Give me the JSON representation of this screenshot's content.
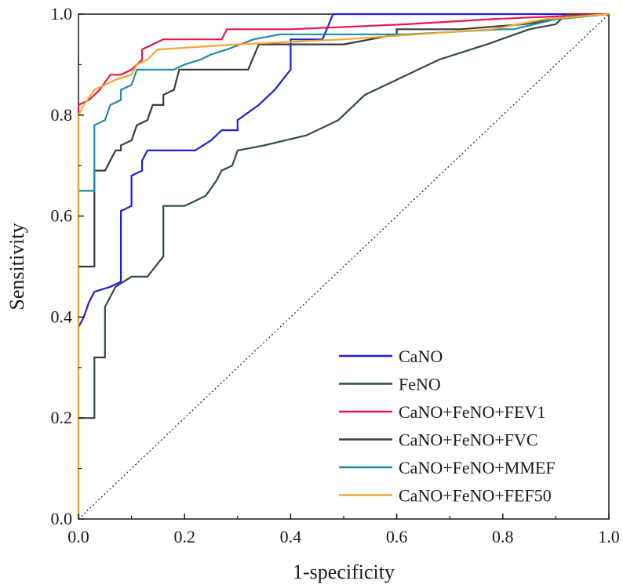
{
  "chart_data": {
    "type": "line",
    "title": "",
    "xlabel": "1-specificity",
    "ylabel": "Sensitivity",
    "xlim": [
      0.0,
      1.0
    ],
    "ylim": [
      0.0,
      1.0
    ],
    "x_ticks": [
      "0.0",
      "0.2",
      "0.4",
      "0.6",
      "0.8",
      "1.0"
    ],
    "y_ticks": [
      "0.0",
      "0.2",
      "0.4",
      "0.6",
      "0.8",
      "1.0"
    ],
    "grid": false,
    "legend_position": "bottom-right",
    "reference_line": {
      "style": "dotted",
      "points": [
        [
          0,
          0
        ],
        [
          1,
          1
        ]
      ]
    },
    "series": [
      {
        "name": "CaNO",
        "color": "#1f1fd8",
        "points": [
          [
            0,
            0.38
          ],
          [
            0.01,
            0.4
          ],
          [
            0.02,
            0.43
          ],
          [
            0.03,
            0.45
          ],
          [
            0.06,
            0.46
          ],
          [
            0.08,
            0.47
          ],
          [
            0.08,
            0.61
          ],
          [
            0.1,
            0.62
          ],
          [
            0.1,
            0.68
          ],
          [
            0.12,
            0.69
          ],
          [
            0.12,
            0.71
          ],
          [
            0.13,
            0.73
          ],
          [
            0.15,
            0.73
          ],
          [
            0.22,
            0.73
          ],
          [
            0.25,
            0.75
          ],
          [
            0.27,
            0.77
          ],
          [
            0.3,
            0.77
          ],
          [
            0.3,
            0.79
          ],
          [
            0.34,
            0.82
          ],
          [
            0.37,
            0.85
          ],
          [
            0.4,
            0.89
          ],
          [
            0.4,
            0.95
          ],
          [
            0.46,
            0.95
          ],
          [
            0.48,
            1.0
          ],
          [
            0.6,
            1.0
          ],
          [
            1.0,
            1.0
          ]
        ]
      },
      {
        "name": "FeNO",
        "color": "#2e4a4a",
        "points": [
          [
            0,
            0.2
          ],
          [
            0.03,
            0.2
          ],
          [
            0.03,
            0.32
          ],
          [
            0.05,
            0.32
          ],
          [
            0.05,
            0.42
          ],
          [
            0.07,
            0.46
          ],
          [
            0.1,
            0.48
          ],
          [
            0.13,
            0.48
          ],
          [
            0.16,
            0.52
          ],
          [
            0.16,
            0.62
          ],
          [
            0.2,
            0.62
          ],
          [
            0.24,
            0.64
          ],
          [
            0.26,
            0.67
          ],
          [
            0.27,
            0.69
          ],
          [
            0.29,
            0.7
          ],
          [
            0.3,
            0.73
          ],
          [
            0.35,
            0.74
          ],
          [
            0.43,
            0.76
          ],
          [
            0.49,
            0.79
          ],
          [
            0.54,
            0.84
          ],
          [
            0.6,
            0.87
          ],
          [
            0.68,
            0.91
          ],
          [
            0.77,
            0.94
          ],
          [
            0.85,
            0.97
          ],
          [
            0.9,
            0.98
          ],
          [
            0.92,
            1.0
          ],
          [
            1.0,
            1.0
          ]
        ]
      },
      {
        "name": "CaNO+FeNO+FEV1",
        "color": "#e5174f",
        "points": [
          [
            0,
            0.0
          ],
          [
            0,
            0.82
          ],
          [
            0.02,
            0.83
          ],
          [
            0.04,
            0.85
          ],
          [
            0.06,
            0.88
          ],
          [
            0.08,
            0.88
          ],
          [
            0.1,
            0.89
          ],
          [
            0.12,
            0.91
          ],
          [
            0.12,
            0.93
          ],
          [
            0.14,
            0.94
          ],
          [
            0.16,
            0.95
          ],
          [
            0.27,
            0.95
          ],
          [
            0.28,
            0.97
          ],
          [
            0.4,
            0.97
          ],
          [
            0.62,
            0.98
          ],
          [
            0.78,
            0.99
          ],
          [
            1.0,
            1.0
          ]
        ]
      },
      {
        "name": "CaNO+FeNO+FVC",
        "color": "#3a3a3a",
        "points": [
          [
            0,
            0.5
          ],
          [
            0.03,
            0.5
          ],
          [
            0.03,
            0.69
          ],
          [
            0.05,
            0.69
          ],
          [
            0.07,
            0.73
          ],
          [
            0.08,
            0.73
          ],
          [
            0.08,
            0.74
          ],
          [
            0.1,
            0.75
          ],
          [
            0.11,
            0.78
          ],
          [
            0.13,
            0.79
          ],
          [
            0.14,
            0.82
          ],
          [
            0.16,
            0.82
          ],
          [
            0.16,
            0.84
          ],
          [
            0.18,
            0.85
          ],
          [
            0.19,
            0.89
          ],
          [
            0.32,
            0.89
          ],
          [
            0.34,
            0.94
          ],
          [
            0.5,
            0.94
          ],
          [
            0.6,
            0.96
          ],
          [
            0.6,
            0.97
          ],
          [
            0.72,
            0.97
          ],
          [
            0.84,
            0.98
          ],
          [
            0.9,
            0.99
          ],
          [
            1.0,
            1.0
          ]
        ]
      },
      {
        "name": "CaNO+FeNO+MMEF",
        "color": "#1f8aa8",
        "points": [
          [
            0,
            0.65
          ],
          [
            0.03,
            0.65
          ],
          [
            0.03,
            0.78
          ],
          [
            0.05,
            0.79
          ],
          [
            0.06,
            0.82
          ],
          [
            0.08,
            0.83
          ],
          [
            0.08,
            0.85
          ],
          [
            0.1,
            0.86
          ],
          [
            0.11,
            0.89
          ],
          [
            0.18,
            0.89
          ],
          [
            0.2,
            0.9
          ],
          [
            0.23,
            0.91
          ],
          [
            0.25,
            0.92
          ],
          [
            0.28,
            0.93
          ],
          [
            0.33,
            0.95
          ],
          [
            0.38,
            0.96
          ],
          [
            0.62,
            0.96
          ],
          [
            0.8,
            0.97
          ],
          [
            0.82,
            0.97
          ],
          [
            0.9,
            0.99
          ],
          [
            1.0,
            1.0
          ]
        ]
      },
      {
        "name": "CaNO+FeNO+FEF50",
        "color": "#f0a830",
        "points": [
          [
            0,
            0.0
          ],
          [
            0,
            0.8
          ],
          [
            0.01,
            0.82
          ],
          [
            0.03,
            0.85
          ],
          [
            0.05,
            0.86
          ],
          [
            0.07,
            0.87
          ],
          [
            0.1,
            0.88
          ],
          [
            0.11,
            0.9
          ],
          [
            0.13,
            0.91
          ],
          [
            0.14,
            0.92
          ],
          [
            0.15,
            0.93
          ],
          [
            0.3,
            0.94
          ],
          [
            0.5,
            0.95
          ],
          [
            0.78,
            0.97
          ],
          [
            0.88,
            0.99
          ],
          [
            1.0,
            1.0
          ]
        ]
      }
    ]
  }
}
